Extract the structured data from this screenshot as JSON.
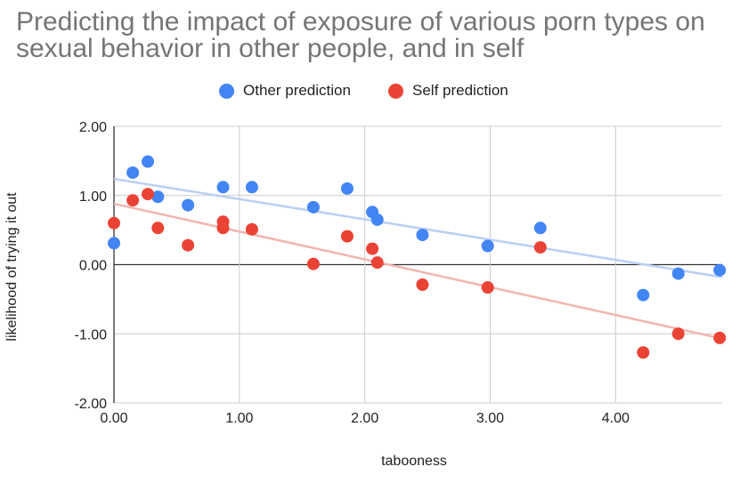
{
  "chart_data": {
    "type": "scatter",
    "title": "Predicting the impact of exposure of various porn types on sexual behavior in other people, and in self",
    "xlabel": "tabooness",
    "ylabel": "likelihood of trying it out",
    "xlim": [
      0,
      4.85
    ],
    "ylim": [
      -2,
      2
    ],
    "x_ticks": [
      "0.00",
      "1.00",
      "2.00",
      "3.00",
      "4.00"
    ],
    "y_ticks": [
      "2.00",
      "1.00",
      "0.00",
      "-1.00",
      "-2.00"
    ],
    "legend_position": "top",
    "grid": true,
    "series": [
      {
        "name": "Other prediction",
        "color": "#4285f4",
        "trendline": [
          [
            0,
            1.24
          ],
          [
            4.85,
            -0.18
          ]
        ],
        "points": [
          [
            0.0,
            0.31
          ],
          [
            0.15,
            1.33
          ],
          [
            0.27,
            1.49
          ],
          [
            0.35,
            0.98
          ],
          [
            0.59,
            0.86
          ],
          [
            0.87,
            1.12
          ],
          [
            1.1,
            1.12
          ],
          [
            1.59,
            0.83
          ],
          [
            1.86,
            1.1
          ],
          [
            2.06,
            0.76
          ],
          [
            2.1,
            0.65
          ],
          [
            2.46,
            0.43
          ],
          [
            2.98,
            0.27
          ],
          [
            3.4,
            0.53
          ],
          [
            4.22,
            -0.44
          ],
          [
            4.5,
            -0.13
          ],
          [
            4.83,
            -0.08
          ]
        ]
      },
      {
        "name": "Self prediction",
        "color": "#ea4335",
        "trendline": [
          [
            0,
            0.88
          ],
          [
            4.85,
            -1.07
          ]
        ],
        "points": [
          [
            0.0,
            0.6
          ],
          [
            0.15,
            0.93
          ],
          [
            0.27,
            1.02
          ],
          [
            0.35,
            0.53
          ],
          [
            0.59,
            0.28
          ],
          [
            0.87,
            0.62
          ],
          [
            0.87,
            0.53
          ],
          [
            1.1,
            0.51
          ],
          [
            1.59,
            0.01
          ],
          [
            1.86,
            0.41
          ],
          [
            2.06,
            0.23
          ],
          [
            2.1,
            0.03
          ],
          [
            2.46,
            -0.29
          ],
          [
            2.98,
            -0.33
          ],
          [
            3.4,
            0.25
          ],
          [
            4.22,
            -1.27
          ],
          [
            4.5,
            -1.0
          ],
          [
            4.83,
            -1.06
          ]
        ]
      }
    ]
  }
}
